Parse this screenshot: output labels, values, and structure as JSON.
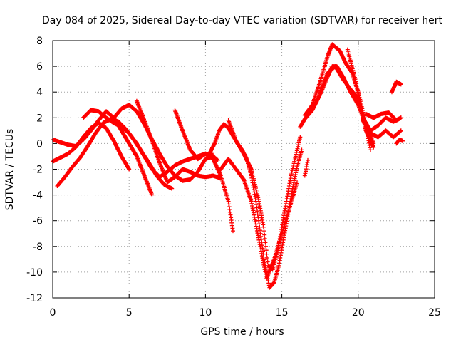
{
  "chart_data": {
    "type": "scatter",
    "title": "Day 084 of 2025, Sidereal Day-to-day VTEC variation (SDTVAR) for receiver hert",
    "xlabel": "GPS time / hours",
    "ylabel": "SDTVAR / TECUs",
    "xlim": [
      0,
      25
    ],
    "ylim": [
      -12,
      8
    ],
    "xticks": [
      0,
      5,
      10,
      15,
      20,
      25
    ],
    "yticks": [
      -12,
      -10,
      -8,
      -6,
      -4,
      -2,
      0,
      2,
      4,
      6,
      8
    ],
    "grid": true,
    "marker": "plus",
    "color": "#ff0000",
    "series": [
      {
        "x": [
          0.0,
          0.5,
          1.0,
          1.5,
          2.0,
          2.5,
          3.0,
          3.5,
          4.0,
          4.5,
          5.0,
          5.5,
          6.0,
          6.5
        ],
        "y": [
          0.3,
          0.1,
          -0.1,
          -0.2,
          0.3,
          1.0,
          1.8,
          2.5,
          2.0,
          1.0,
          0.0,
          -1.0,
          -2.5,
          -4.0
        ]
      },
      {
        "x": [
          0.0,
          0.5,
          1.0,
          1.5,
          2.0,
          2.5,
          3.0,
          3.5,
          4.0,
          4.5,
          5.0
        ],
        "y": [
          -1.4,
          -1.1,
          -0.8,
          -0.3,
          0.5,
          1.2,
          1.6,
          1.2,
          0.2,
          -1.0,
          -2.0
        ]
      },
      {
        "x": [
          0.3,
          0.8,
          1.3,
          1.8,
          2.3,
          2.8,
          3.3,
          3.8,
          4.3,
          4.8,
          5.3,
          5.8,
          6.3,
          6.8,
          7.3,
          7.8
        ],
        "y": [
          -3.3,
          -2.6,
          -1.8,
          -1.1,
          -0.2,
          0.8,
          1.6,
          1.9,
          1.7,
          1.1,
          0.3,
          -0.6,
          -1.5,
          -2.5,
          -3.2,
          -3.5
        ]
      },
      {
        "x": [
          2.0,
          2.5,
          3.0,
          3.5,
          4.0,
          4.5,
          5.0,
          5.5,
          6.0,
          6.5,
          7.0,
          7.5,
          8.0,
          8.5,
          9.0,
          9.5,
          10.0,
          10.5
        ],
        "y": [
          2.0,
          2.6,
          2.5,
          2.0,
          1.6,
          1.3,
          0.8,
          0.0,
          -1.0,
          -2.0,
          -2.6,
          -2.2,
          -1.7,
          -1.4,
          -1.2,
          -1.0,
          -0.8,
          -0.9
        ]
      },
      {
        "x": [
          4.0,
          4.5,
          5.0,
          5.5,
          6.0,
          6.5,
          7.0,
          7.5,
          8.0,
          8.5,
          9.0,
          9.5,
          10.0,
          10.5,
          10.8
        ],
        "y": [
          2.0,
          2.7,
          3.0,
          2.5,
          1.5,
          0.3,
          -0.8,
          -1.8,
          -2.5,
          -2.9,
          -2.8,
          -2.2,
          -1.2,
          -1.0,
          -1.3
        ]
      },
      {
        "x": [
          5.5,
          6.0,
          6.5,
          7.0,
          7.5,
          8.0,
          8.5,
          9.0,
          9.5,
          10.0,
          10.5,
          11.0
        ],
        "y": [
          3.3,
          1.8,
          0.2,
          -1.5,
          -3.0,
          -2.6,
          -2.0,
          -2.2,
          -2.5,
          -2.6,
          -2.5,
          -2.7
        ]
      },
      {
        "x": [
          8.0,
          8.5,
          9.0,
          9.5,
          10.0,
          10.5,
          11.0,
          11.5,
          11.8
        ],
        "y": [
          2.6,
          1.0,
          -0.5,
          -1.2,
          -0.8,
          -1.2,
          -2.5,
          -4.5,
          -6.8
        ]
      },
      {
        "x": [
          10.3,
          10.6,
          10.9,
          11.2,
          11.5,
          11.8,
          12.1,
          12.4,
          12.7,
          13.0,
          13.3,
          13.6,
          13.9,
          14.2,
          14.5,
          14.8,
          15.1,
          15.4,
          15.7,
          16.0,
          16.3
        ],
        "y": [
          -0.7,
          0.0,
          1.0,
          1.5,
          1.2,
          0.6,
          0.0,
          -0.5,
          -1.2,
          -2.5,
          -4.5,
          -7.0,
          -9.5,
          -11.2,
          -10.8,
          -9.5,
          -7.5,
          -5.5,
          -3.5,
          -1.8,
          -0.5
        ]
      },
      {
        "x": [
          11.0,
          11.5,
          12.0,
          12.5,
          13.0,
          13.5,
          14.0,
          14.5,
          15.0,
          15.5,
          16.0
        ],
        "y": [
          -2.0,
          -1.2,
          -2.0,
          -2.8,
          -4.5,
          -7.5,
          -10.5,
          -9.0,
          -7.0,
          -5.0,
          -3.0
        ]
      },
      {
        "x": [
          11.5,
          12.0,
          12.5,
          13.0,
          13.5,
          13.8,
          14.1,
          14.4,
          14.7,
          15.0,
          15.3,
          15.6,
          15.9,
          16.2
        ],
        "y": [
          1.8,
          0.2,
          -0.8,
          -2.0,
          -4.5,
          -6.5,
          -9.5,
          -9.8,
          -8.5,
          -6.5,
          -4.5,
          -2.5,
          -1.0,
          0.5
        ]
      },
      {
        "x": [
          16.2,
          16.5,
          17.0,
          17.5,
          18.0,
          18.3,
          18.6,
          19.0,
          19.5,
          20.0,
          20.5,
          21.0
        ],
        "y": [
          1.3,
          1.9,
          2.6,
          3.8,
          5.2,
          6.0,
          6.0,
          5.2,
          4.0,
          3.0,
          1.5,
          0.0
        ]
      },
      {
        "x": [
          16.5,
          17.0,
          17.5,
          18.0,
          18.3,
          18.8,
          19.2,
          19.6,
          20.0,
          20.4,
          20.8
        ],
        "y": [
          2.2,
          3.0,
          4.8,
          6.8,
          7.7,
          7.2,
          6.2,
          5.5,
          4.0,
          2.0,
          -0.5
        ]
      },
      {
        "x": [
          17.5,
          18.0,
          18.5,
          19.0,
          19.5,
          20.0,
          20.5,
          21.0
        ],
        "y": [
          4.0,
          5.5,
          6.0,
          5.0,
          4.2,
          3.5,
          1.0,
          -0.3
        ]
      },
      {
        "x": [
          19.3,
          19.8,
          20.3,
          20.8,
          21.3,
          21.8,
          22.3,
          22.8
        ],
        "y": [
          7.3,
          5.0,
          2.0,
          1.0,
          1.4,
          2.0,
          1.7,
          2.0
        ]
      },
      {
        "x": [
          20.3,
          20.8,
          21.3,
          21.8,
          22.3,
          22.8
        ],
        "y": [
          1.8,
          0.8,
          0.5,
          1.0,
          0.5,
          1.0
        ]
      },
      {
        "x": [
          20.5,
          21.0,
          21.5,
          22.0,
          22.5,
          22.8
        ],
        "y": [
          2.3,
          2.0,
          2.3,
          2.4,
          1.8,
          2.0
        ]
      },
      {
        "x": [
          22.2,
          22.5,
          22.8
        ],
        "y": [
          4.0,
          4.8,
          4.6
        ]
      },
      {
        "x": [
          22.5,
          22.7,
          22.9
        ],
        "y": [
          0.0,
          0.3,
          0.2
        ]
      },
      {
        "x": [
          16.5,
          16.7
        ],
        "y": [
          -2.5,
          -1.3
        ]
      }
    ]
  }
}
